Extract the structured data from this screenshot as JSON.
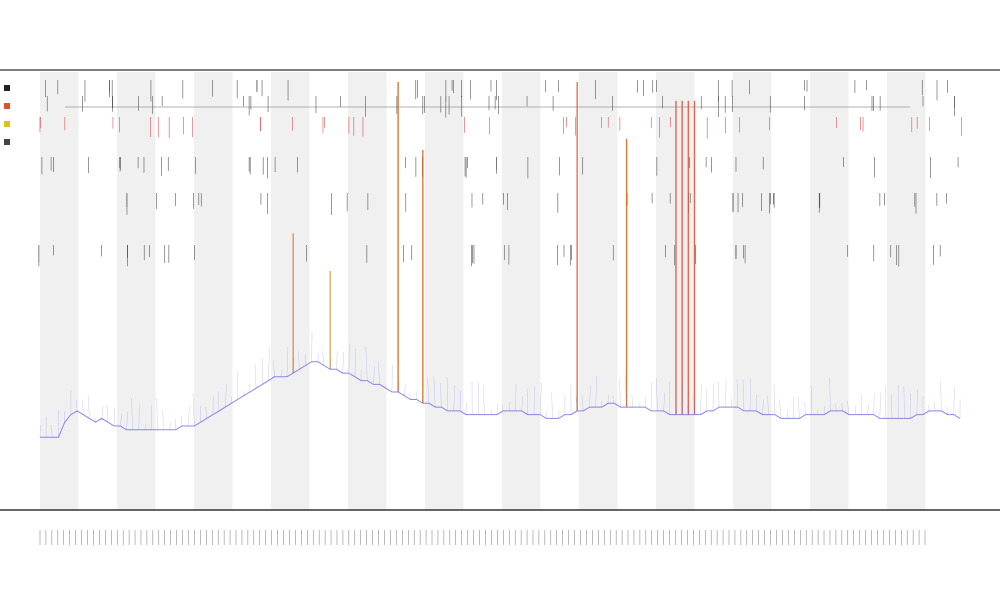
{
  "chart_data": {
    "type": "line",
    "title": "",
    "subtitle_lines": [
      "",
      ""
    ],
    "xlabel": "",
    "ylabel": "",
    "x_tick_count": 150,
    "y_range": [
      0,
      100
    ],
    "grid": false,
    "alternating_bands": true,
    "legend_position": "left",
    "series": [
      {
        "color": "#6a6ae6",
        "role": "baseline-signal",
        "values": [
          6,
          6,
          6,
          6,
          10,
          12,
          13,
          12,
          11,
          10,
          11,
          10,
          9,
          9,
          8,
          8,
          8,
          8,
          8,
          8,
          8,
          8,
          8,
          9,
          9,
          9,
          10,
          11,
          12,
          13,
          14,
          15,
          16,
          17,
          18,
          19,
          20,
          21,
          22,
          22,
          22,
          23,
          24,
          25,
          26,
          26,
          25,
          24,
          24,
          23,
          23,
          22,
          21,
          21,
          20,
          20,
          19,
          18,
          18,
          17,
          16,
          16,
          15,
          15,
          14,
          14,
          13,
          13,
          13,
          12,
          12,
          12,
          12,
          12,
          12,
          13,
          13,
          13,
          13,
          12,
          12,
          12,
          11,
          11,
          11,
          12,
          12,
          13,
          13,
          14,
          14,
          14,
          15,
          15,
          14,
          14,
          14,
          14,
          14,
          13,
          13,
          13,
          12,
          12,
          12,
          12,
          12,
          12,
          13,
          13,
          14,
          14,
          14,
          14,
          13,
          13,
          13,
          12,
          12,
          12,
          11,
          11,
          11,
          11,
          12,
          12,
          12,
          12,
          13,
          13,
          13,
          12,
          12,
          12,
          12,
          12,
          11,
          11,
          11,
          11,
          11,
          11,
          12,
          12,
          13,
          13,
          13,
          12,
          12,
          11
        ]
      }
    ],
    "spikes": [
      {
        "x_index": 58,
        "color": "#e06010",
        "height": 100
      },
      {
        "x_index": 62,
        "color": "#e06010",
        "height": 82
      },
      {
        "x_index": 87,
        "color": "#e06010",
        "height": 100
      },
      {
        "x_index": 95,
        "color": "#e06010",
        "height": 85
      },
      {
        "x_index": 103,
        "color": "#e05030",
        "height": 95
      },
      {
        "x_index": 104,
        "color": "#e05030",
        "height": 95
      },
      {
        "x_index": 105,
        "color": "#e05030",
        "height": 95
      },
      {
        "x_index": 106,
        "color": "#e05030",
        "height": 95
      },
      {
        "x_index": 41,
        "color": "#e08040",
        "height": 60
      },
      {
        "x_index": 47,
        "color": "#e0a040",
        "height": 50
      }
    ],
    "legend_entries": [
      {
        "color": "#222222",
        "label": ""
      },
      {
        "color": "#e05030",
        "label": ""
      },
      {
        "color": "#e0c020",
        "label": ""
      },
      {
        "color": "#444444",
        "label": ""
      }
    ]
  }
}
